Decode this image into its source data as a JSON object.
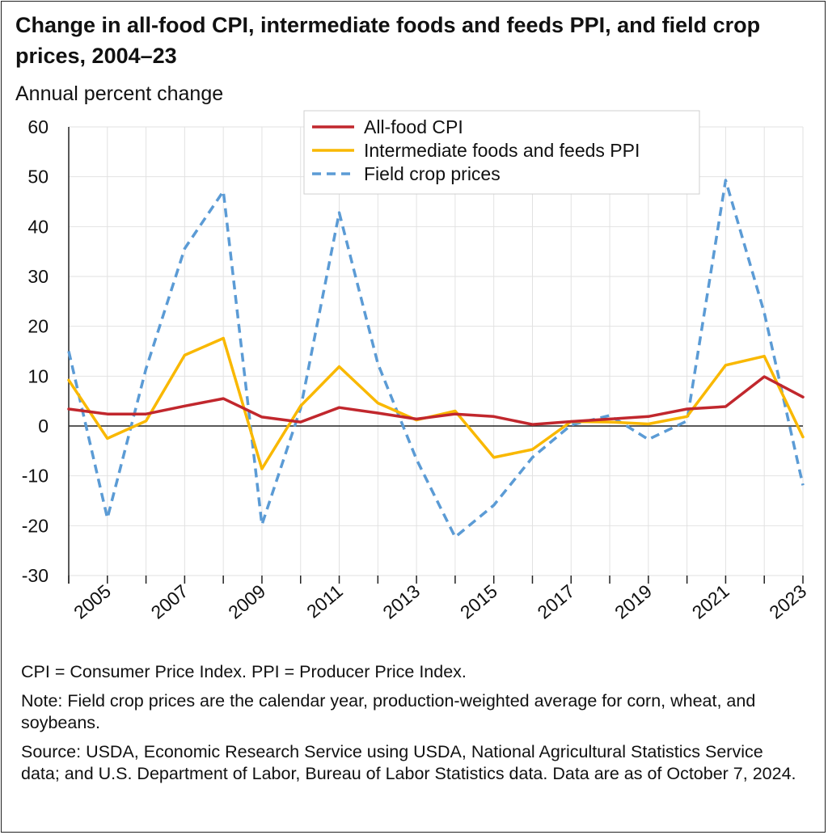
{
  "chart_data": {
    "type": "line",
    "title": "Change in all-food CPI, intermediate foods and feeds PPI, and field crop prices, 2004–23",
    "ylabel": "Annual percent change",
    "xlabel": "",
    "x": [
      2004,
      2005,
      2006,
      2007,
      2008,
      2009,
      2010,
      2011,
      2012,
      2013,
      2014,
      2015,
      2016,
      2017,
      2018,
      2019,
      2020,
      2021,
      2022,
      2023
    ],
    "xticks": [
      "2005",
      "2007",
      "2009",
      "2011",
      "2013",
      "2015",
      "2017",
      "2019",
      "2021",
      "2023"
    ],
    "xtick_values": [
      2005,
      2007,
      2009,
      2011,
      2013,
      2015,
      2017,
      2019,
      2021,
      2023
    ],
    "ylim": [
      -30,
      60
    ],
    "yticks": [
      "60",
      "50",
      "40",
      "30",
      "20",
      "10",
      "0",
      "-10",
      "-20",
      "-30"
    ],
    "ytick_values": [
      60,
      50,
      40,
      30,
      20,
      10,
      0,
      -10,
      -20,
      -30
    ],
    "grid": true,
    "legend_position": "top-center",
    "series": [
      {
        "name": "All-food CPI",
        "color": "#c1272d",
        "style": "solid",
        "values": [
          3.4,
          2.4,
          2.4,
          4.0,
          5.5,
          1.8,
          0.8,
          3.7,
          2.6,
          1.4,
          2.4,
          1.9,
          0.3,
          0.9,
          1.4,
          1.9,
          3.4,
          3.9,
          9.9,
          5.8
        ]
      },
      {
        "name": "Intermediate foods and feeds PPI",
        "color": "#f9b800",
        "style": "solid",
        "values": [
          9.2,
          -2.5,
          1.0,
          14.2,
          17.6,
          -8.6,
          4.0,
          11.9,
          4.6,
          1.2,
          3.0,
          -6.3,
          -4.7,
          0.9,
          0.8,
          0.4,
          1.9,
          12.2,
          14.0,
          -2.2
        ]
      },
      {
        "name": "Field crop prices",
        "color": "#5b9bd5",
        "style": "dashed",
        "values": [
          15.0,
          -18.5,
          11.5,
          35.6,
          47.1,
          -19.8,
          3.5,
          42.8,
          12.5,
          -6.7,
          -22.3,
          -15.9,
          -6.3,
          0.2,
          2.1,
          -2.7,
          1.0,
          49.3,
          22.7,
          -11.9
        ]
      }
    ]
  },
  "notes": {
    "abbreviations": "CPI = Consumer Price Index. PPI = Producer Price Index.",
    "note": "Note: Field crop prices are the calendar year, production-weighted average for corn, wheat, and soybeans.",
    "source": "Source: USDA, Economic Research Service using USDA, National Agricultural Statistics Service data; and U.S. Department of Labor, Bureau of Labor Statistics data. Data are as of October 7, 2024."
  }
}
